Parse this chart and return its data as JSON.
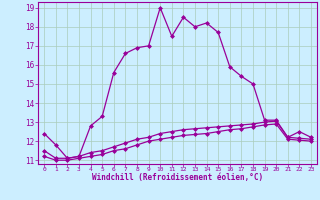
{
  "xlabel": "Windchill (Refroidissement éolien,°C)",
  "background_color": "#cceeff",
  "line_color": "#990099",
  "grid_color": "#aaccbb",
  "x_values": [
    0,
    1,
    2,
    3,
    4,
    5,
    6,
    7,
    8,
    9,
    10,
    11,
    12,
    13,
    14,
    15,
    16,
    17,
    18,
    19,
    20,
    21,
    22,
    23
  ],
  "upper_line": [
    12.4,
    11.8,
    11.1,
    11.2,
    12.8,
    13.3,
    15.6,
    16.6,
    16.9,
    17.0,
    19.0,
    17.5,
    18.5,
    18.0,
    18.2,
    17.7,
    15.9,
    15.4,
    15.0,
    13.1,
    13.1,
    12.2,
    12.5,
    12.2
  ],
  "lower_line1": [
    11.5,
    11.1,
    11.1,
    11.2,
    11.4,
    11.5,
    11.7,
    11.9,
    12.1,
    12.2,
    12.4,
    12.5,
    12.6,
    12.65,
    12.7,
    12.75,
    12.8,
    12.85,
    12.9,
    13.0,
    13.05,
    12.2,
    12.15,
    12.1
  ],
  "lower_line2": [
    11.2,
    11.0,
    11.0,
    11.1,
    11.2,
    11.3,
    11.5,
    11.6,
    11.8,
    12.0,
    12.1,
    12.2,
    12.3,
    12.35,
    12.4,
    12.5,
    12.6,
    12.65,
    12.75,
    12.85,
    12.9,
    12.1,
    12.05,
    12.0
  ],
  "ylim": [
    10.8,
    19.3
  ],
  "yticks": [
    11,
    12,
    13,
    14,
    15,
    16,
    17,
    18,
    19
  ],
  "xticks": [
    0,
    1,
    2,
    3,
    4,
    5,
    6,
    7,
    8,
    9,
    10,
    11,
    12,
    13,
    14,
    15,
    16,
    17,
    18,
    19,
    20,
    21,
    22,
    23
  ],
  "xlim": [
    -0.5,
    23.5
  ]
}
